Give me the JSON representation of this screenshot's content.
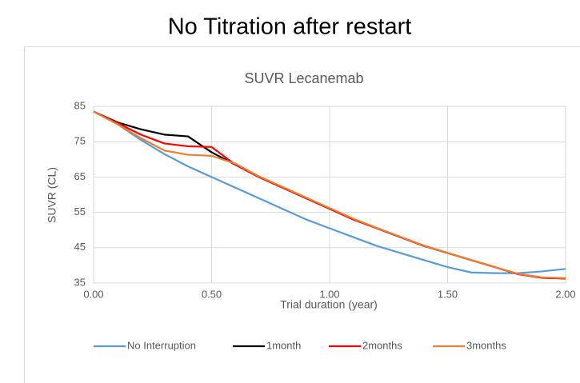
{
  "title": "No Titration after restart",
  "chart_data": {
    "type": "line",
    "title": "SUVR Lecanemab",
    "x_label": "Trial duration (year)",
    "y_label": "SUVR (CL)",
    "x": [
      0,
      0.1,
      0.2,
      0.3,
      0.4,
      0.5,
      0.6,
      0.7,
      0.8,
      0.9,
      1.0,
      1.1,
      1.2,
      1.3,
      1.4,
      1.5,
      1.6,
      1.7,
      1.8,
      1.9,
      2.0
    ],
    "series": [
      {
        "name": "No Interruption",
        "color": "#5b9bd5",
        "values": [
          83.5,
          80,
          75.5,
          71.5,
          68,
          65,
          62,
          59,
          56,
          53,
          50.5,
          48,
          45.5,
          43.5,
          41.5,
          39.5,
          38,
          37.8,
          37.8,
          38.3,
          39
        ]
      },
      {
        "name": "1month",
        "color": "#000000",
        "values": [
          83.5,
          80.5,
          78.5,
          77,
          76.5,
          72,
          68.5,
          65,
          62,
          59,
          56,
          53,
          50.5,
          48,
          45.5,
          43.5,
          41.5,
          39.5,
          37.5,
          36.5,
          36.3
        ]
      },
      {
        "name": "2months",
        "color": "#ff0000",
        "values": [
          83.5,
          80.3,
          77,
          74.5,
          73.7,
          73.5,
          68.5,
          65,
          62,
          59,
          56,
          53,
          50.5,
          48,
          45.5,
          43.5,
          41.5,
          39.5,
          37.5,
          36.5,
          36.3
        ]
      },
      {
        "name": "3months",
        "color": "#ed7d31",
        "values": [
          83.5,
          80,
          76,
          72.5,
          71.3,
          71,
          68.8,
          65.2,
          62.2,
          59.2,
          56.2,
          53.2,
          50.6,
          48.1,
          45.6,
          43.5,
          41.5,
          39.5,
          37.6,
          36.6,
          36.4
        ]
      }
    ],
    "xlim": [
      0,
      2
    ],
    "xticks": [
      {
        "value": 0,
        "label": "0.00"
      },
      {
        "value": 0.5,
        "label": "0.50"
      },
      {
        "value": 1,
        "label": "1.00"
      },
      {
        "value": 1.5,
        "label": "1.50"
      },
      {
        "value": 2,
        "label": "2.00"
      }
    ],
    "ylim": [
      35,
      85
    ],
    "yticks": [
      35,
      45,
      55,
      65,
      75,
      85
    ],
    "grid": true,
    "legend": "bottom"
  }
}
